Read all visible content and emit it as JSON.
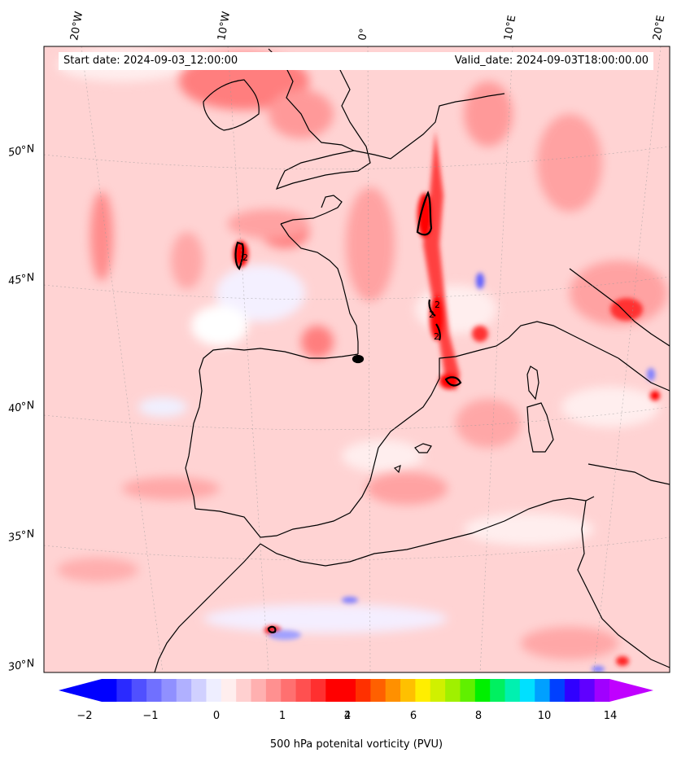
{
  "map": {
    "start_date": "Start date: 2024-09-03_12:00:00",
    "valid_date": "Valid_date: 2024-09-03T18:00:00.00",
    "lon_labels": [
      "20°W",
      "10°W",
      "0°",
      "10°E",
      "20°E"
    ],
    "lat_labels": [
      "50°N",
      "45°N",
      "40°N",
      "35°N",
      "30°N"
    ],
    "contour_labels": [
      "2",
      "2",
      "2",
      "2"
    ],
    "land_outline_color": "#000000",
    "background_field_color": "#ffd3d3"
  },
  "colorbar": {
    "label": "500 hPa potenital vorticity (PVU)",
    "ticks": [
      "−2",
      "−1",
      "0",
      "1",
      "2",
      "4",
      "6",
      "8",
      "10",
      "14"
    ],
    "colors": [
      "#0000ff",
      "#2a2aff",
      "#5050ff",
      "#7070ff",
      "#9090ff",
      "#b0b0ff",
      "#d0d0ff",
      "#eeeeff",
      "#ffeeee",
      "#ffd0d0",
      "#ffb0b0",
      "#ff9090",
      "#ff7070",
      "#ff5050",
      "#ff3030",
      "#ff0000",
      "#ff0000",
      "#ff3000",
      "#ff6000",
      "#ff9000",
      "#ffc000",
      "#ffee00",
      "#d0f000",
      "#a0f000",
      "#60f000",
      "#00f000",
      "#00f060",
      "#00f0b0",
      "#00e0ff",
      "#00a0ff",
      "#0040ff",
      "#3000ff",
      "#6000ff",
      "#a000ff"
    ],
    "min_arrow_color": "#0000ff",
    "max_arrow_color": "#c000ff"
  }
}
